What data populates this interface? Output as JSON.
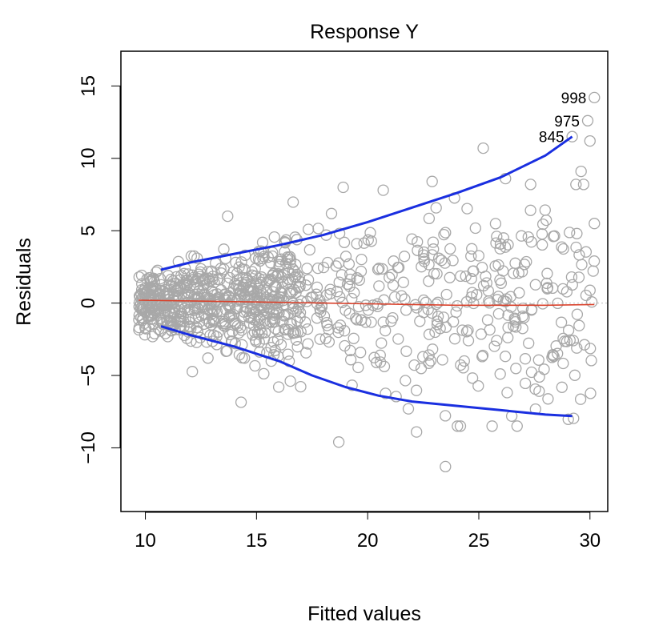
{
  "chart_data": {
    "type": "scatter",
    "title": "Response Y",
    "xlabel": "Fitted values",
    "ylabel": "Residuals",
    "xlim": [
      8.9,
      30.8
    ],
    "ylim": [
      -14.4,
      17.4
    ],
    "x_ticks": [
      10,
      15,
      20,
      25,
      30
    ],
    "y_ticks": [
      -10,
      -5,
      0,
      5,
      10,
      15
    ],
    "x_tick_labels": [
      "10",
      "15",
      "20",
      "25",
      "30"
    ],
    "y_tick_labels": [
      "−10",
      "−5",
      "0",
      "5",
      "10",
      "15"
    ],
    "grid": false,
    "reference_line_y": 0,
    "colors": {
      "points": "#a8a8a8",
      "bands": "#1a2fe0",
      "trend": "#d9412b",
      "reference": "#bdbdbd",
      "frame": "#000000"
    },
    "labeled_points": [
      {
        "label": "998",
        "x": 30.2,
        "y": 14.2
      },
      {
        "label": "975",
        "x": 29.9,
        "y": 12.6
      },
      {
        "label": "845",
        "x": 29.2,
        "y": 11.5
      }
    ],
    "notable_points": [
      {
        "x": 23.5,
        "y": -11.3
      },
      {
        "x": 18.7,
        "y": -9.6
      },
      {
        "x": 22.2,
        "y": -8.9
      },
      {
        "x": 13.7,
        "y": 6.0
      },
      {
        "x": 18.9,
        "y": 8.0
      },
      {
        "x": 20.7,
        "y": 7.8
      },
      {
        "x": 22.9,
        "y": 8.4
      },
      {
        "x": 25.2,
        "y": 10.7
      },
      {
        "x": 16.0,
        "y": -5.8
      },
      {
        "x": 30.0,
        "y": 11.2
      },
      {
        "x": 30.2,
        "y": 5.5
      },
      {
        "x": 29.6,
        "y": 9.1
      },
      {
        "x": 26.2,
        "y": 8.6
      }
    ],
    "series": [
      {
        "type": "line",
        "x": [
          10.7,
          12,
          14,
          16,
          18,
          20,
          22,
          24,
          26,
          28,
          29.2
        ],
        "y": [
          2.3,
          2.8,
          3.4,
          4.0,
          4.7,
          5.6,
          6.6,
          7.6,
          8.7,
          10.2,
          11.5
        ]
      },
      {
        "type": "line",
        "x": [
          10.7,
          12,
          14,
          16,
          17.5,
          19,
          20.5,
          22,
          24,
          26,
          28,
          29.2
        ],
        "y": [
          -1.6,
          -2.2,
          -3.0,
          -4.0,
          -5.0,
          -5.8,
          -6.4,
          -6.8,
          -7.1,
          -7.4,
          -7.7,
          -7.8
        ]
      },
      {
        "type": "line",
        "x": [
          9.7,
          12,
          14,
          16,
          18,
          20,
          22,
          24,
          26,
          28,
          30.2
        ],
        "y": [
          0.2,
          0.15,
          0.1,
          0.05,
          0.0,
          -0.05,
          -0.1,
          -0.15,
          -0.15,
          -0.15,
          -0.1
        ]
      }
    ],
    "cloud": {
      "n": 990,
      "x_range": [
        9.7,
        30.2
      ],
      "x_density": "denser between 10 and 17",
      "spread_y_at_x": [
        {
          "x": 10,
          "y": 1.1
        },
        {
          "x": 15,
          "y": 1.8
        },
        {
          "x": 20,
          "y": 2.8
        },
        {
          "x": 25,
          "y": 3.8
        },
        {
          "x": 30,
          "y": 4.6
        }
      ]
    }
  }
}
